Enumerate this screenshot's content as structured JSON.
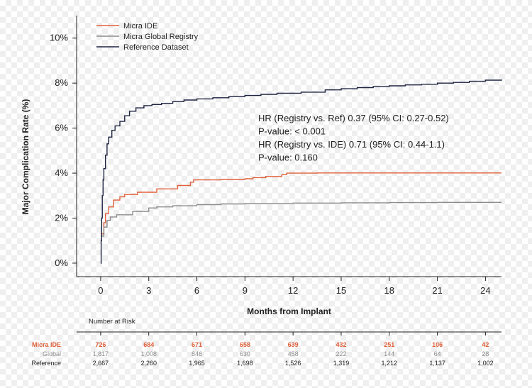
{
  "chart_data": {
    "type": "line",
    "xlabel": "Months from Implant",
    "ylabel": "Major Complication Rate (%)",
    "xlim": [
      -1.5,
      25
    ],
    "ylim": [
      -0.6,
      11
    ],
    "x_ticks": [
      0,
      3,
      6,
      9,
      12,
      15,
      18,
      21,
      24
    ],
    "x_tick_labels": [
      "0",
      "3",
      "6",
      "9",
      "12",
      "15",
      "18",
      "21",
      "24"
    ],
    "y_ticks": [
      0,
      2,
      4,
      6,
      8,
      10
    ],
    "y_tick_labels": [
      "0%",
      "2%",
      "4%",
      "6%",
      "8%",
      "10%"
    ],
    "legend_position": "top-left",
    "series": [
      {
        "name": "Micra IDE",
        "color": "#e0603a",
        "points": [
          [
            0,
            1.3
          ],
          [
            0.2,
            1.8
          ],
          [
            0.3,
            2.2
          ],
          [
            0.5,
            2.5
          ],
          [
            0.8,
            2.8
          ],
          [
            1.2,
            2.95
          ],
          [
            1.5,
            3.05
          ],
          [
            2.3,
            3.15
          ],
          [
            3.5,
            3.3
          ],
          [
            4.8,
            3.45
          ],
          [
            5.6,
            3.6
          ],
          [
            5.8,
            3.7
          ],
          [
            7.5,
            3.72
          ],
          [
            9,
            3.75
          ],
          [
            9.5,
            3.8
          ],
          [
            10.3,
            3.85
          ],
          [
            11.3,
            3.93
          ],
          [
            11.6,
            4.0
          ],
          [
            13.5,
            4.01
          ],
          [
            15,
            4.01
          ],
          [
            17,
            4.01
          ],
          [
            19,
            4.01
          ],
          [
            21,
            4.01
          ],
          [
            25,
            4.01
          ]
        ]
      },
      {
        "name": "Micra Global Registry",
        "color": "#8c8c8c",
        "points": [
          [
            0,
            1.2
          ],
          [
            0.2,
            1.6
          ],
          [
            0.4,
            1.9
          ],
          [
            0.6,
            2.05
          ],
          [
            1,
            2.15
          ],
          [
            2,
            2.3
          ],
          [
            3,
            2.45
          ],
          [
            3.5,
            2.5
          ],
          [
            4.5,
            2.55
          ],
          [
            6,
            2.6
          ],
          [
            7.5,
            2.63
          ],
          [
            9,
            2.65
          ],
          [
            12,
            2.67
          ],
          [
            15,
            2.68
          ],
          [
            18,
            2.69
          ],
          [
            21,
            2.7
          ],
          [
            25,
            2.7
          ]
        ]
      },
      {
        "name": "Reference Dataset",
        "color": "#1c2340",
        "points": [
          [
            0,
            0
          ],
          [
            0.03,
            1.0
          ],
          [
            0.06,
            2.0
          ],
          [
            0.1,
            3.0
          ],
          [
            0.15,
            3.7
          ],
          [
            0.2,
            4.2
          ],
          [
            0.3,
            4.8
          ],
          [
            0.4,
            5.3
          ],
          [
            0.5,
            5.6
          ],
          [
            0.7,
            5.9
          ],
          [
            0.9,
            6.1
          ],
          [
            1.2,
            6.3
          ],
          [
            1.5,
            6.55
          ],
          [
            1.8,
            6.75
          ],
          [
            2.2,
            6.9
          ],
          [
            2.7,
            7.0
          ],
          [
            3.2,
            7.05
          ],
          [
            3.8,
            7.1
          ],
          [
            4.5,
            7.18
          ],
          [
            5.2,
            7.25
          ],
          [
            6,
            7.3
          ],
          [
            7,
            7.35
          ],
          [
            8,
            7.4
          ],
          [
            9,
            7.45
          ],
          [
            10,
            7.5
          ],
          [
            11,
            7.55
          ],
          [
            12.5,
            7.6
          ],
          [
            14,
            7.7
          ],
          [
            15,
            7.75
          ],
          [
            16,
            7.8
          ],
          [
            17,
            7.85
          ],
          [
            18,
            7.88
          ],
          [
            19,
            7.92
          ],
          [
            20,
            7.95
          ],
          [
            21,
            8.0
          ],
          [
            22,
            8.03
          ],
          [
            23,
            8.08
          ],
          [
            24,
            8.13
          ],
          [
            25,
            8.16
          ]
        ]
      }
    ],
    "annotations": [
      "HR (Registry vs. Ref) 0.37 (95% CI: 0.27-0.52)",
      "P-value: < 0.001",
      "HR (Registry vs. IDE) 0.71 (95% CI: 0.44-1.1)",
      "P-value: 0.160"
    ],
    "risk_table": {
      "title": "Number at Risk",
      "months": [
        0,
        3,
        6,
        9,
        12,
        15,
        18,
        21,
        24
      ],
      "rows": [
        {
          "label": "Micra IDE",
          "color": "#e0603a",
          "values": [
            "726",
            "684",
            "671",
            "658",
            "639",
            "432",
            "251",
            "106",
            "42"
          ]
        },
        {
          "label": "Global",
          "color": "#8c8c8c",
          "values": [
            "1,817",
            "1,008",
            "846",
            "630",
            "458",
            "222",
            "144",
            "64",
            "28"
          ]
        },
        {
          "label": "Reference",
          "color": "#222222",
          "values": [
            "2,667",
            "2,260",
            "1,965",
            "1,698",
            "1,526",
            "1,319",
            "1,212",
            "1,137",
            "1,002"
          ]
        }
      ]
    }
  }
}
